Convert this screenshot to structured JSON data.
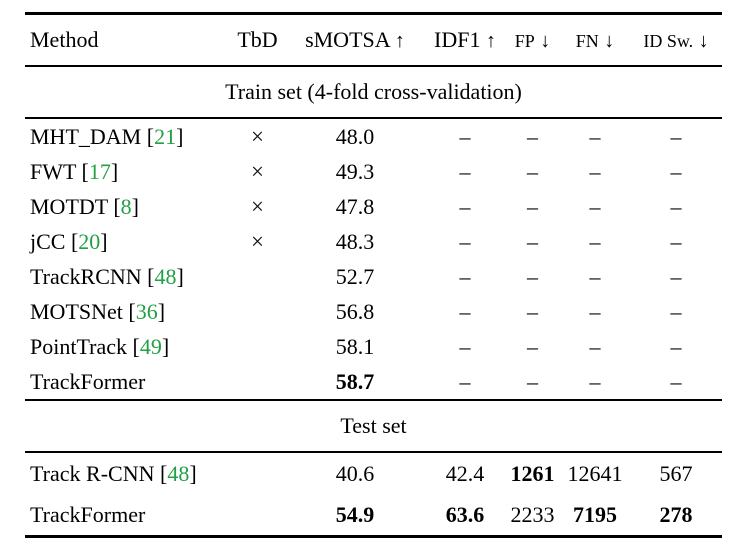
{
  "table": {
    "header": {
      "method": "Method",
      "tbd": "TbD",
      "smotsa": "sMOTSA",
      "idf1": "IDF1",
      "fp": "FP",
      "fn": "FN",
      "idsw": "ID Sw.",
      "up_arrow": "↑",
      "down_arrow": "↓"
    },
    "sections": {
      "train_label": "Train set (4-fold cross-validation)",
      "test_label": "Test set"
    },
    "train_rows": [
      {
        "method": "MHT_DAM",
        "bl": "[",
        "cite": "21",
        "br": "]",
        "tbd": "×",
        "smotsa": "48.0",
        "idf1": "–",
        "fp": "–",
        "fn": "–",
        "idsw": "–"
      },
      {
        "method": "FWT",
        "bl": "[",
        "cite": "17",
        "br": "]",
        "tbd": "×",
        "smotsa": "49.3",
        "idf1": "–",
        "fp": "–",
        "fn": "–",
        "idsw": "–"
      },
      {
        "method": "MOTDT",
        "bl": "[",
        "cite": "8",
        "br": "]",
        "tbd": "×",
        "smotsa": "47.8",
        "idf1": "–",
        "fp": "–",
        "fn": "–",
        "idsw": "–"
      },
      {
        "method": "jCC",
        "bl": "[",
        "cite": "20",
        "br": "]",
        "tbd": "×",
        "smotsa": "48.3",
        "idf1": "–",
        "fp": "–",
        "fn": "–",
        "idsw": "–"
      },
      {
        "method": "TrackRCNN",
        "bl": "[",
        "cite": "48",
        "br": "]",
        "tbd": "",
        "smotsa": "52.7",
        "idf1": "–",
        "fp": "–",
        "fn": "–",
        "idsw": "–"
      },
      {
        "method": "MOTSNet",
        "bl": "[",
        "cite": "36",
        "br": "]",
        "tbd": "",
        "smotsa": "56.8",
        "idf1": "–",
        "fp": "–",
        "fn": "–",
        "idsw": "–"
      },
      {
        "method": "PointTrack",
        "bl": "[",
        "cite": "49",
        "br": "]",
        "tbd": "",
        "smotsa": "58.1",
        "idf1": "–",
        "fp": "–",
        "fn": "–",
        "idsw": "–"
      },
      {
        "method": "TrackFormer",
        "bl": "",
        "cite": "",
        "br": "",
        "tbd": "",
        "smotsa": "58.7",
        "idf1": "–",
        "fp": "–",
        "fn": "–",
        "idsw": "–"
      }
    ],
    "test_rows": [
      {
        "method": "Track R-CNN",
        "bl": "[",
        "cite": "48",
        "br": "]",
        "tbd": "",
        "smotsa": "40.6",
        "idf1": "42.4",
        "fp": "1261",
        "fn": "12641",
        "idsw": "567"
      },
      {
        "method": "TrackFormer",
        "bl": "",
        "cite": "",
        "br": "",
        "tbd": "",
        "smotsa": "54.9",
        "idf1": "63.6",
        "fp": "2233",
        "fn": "7195",
        "idsw": "278"
      }
    ],
    "colors": {
      "citation_green": "#22A045",
      "text": "#000000",
      "background": "#ffffff"
    }
  }
}
